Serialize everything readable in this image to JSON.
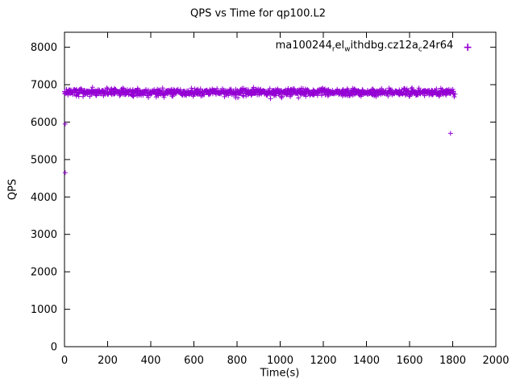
{
  "chart_data": {
    "type": "scatter",
    "title": "QPS vs Time for qp100.L2",
    "xlabel": "Time(s)",
    "ylabel": "QPS",
    "xlim": [
      0,
      2000
    ],
    "ylim": [
      0,
      8400
    ],
    "xticks": [
      0,
      200,
      400,
      600,
      800,
      1000,
      1200,
      1400,
      1600,
      1800,
      2000
    ],
    "yticks": [
      0,
      1000,
      2000,
      3000,
      4000,
      5000,
      6000,
      7000,
      8000
    ],
    "grid": false,
    "marker": "plus",
    "marker_color": "#9400D3",
    "legend_position": "top-right",
    "legend": {
      "name": "ma100244_rel_withdbg.cz12a_c24r64",
      "display_parts": [
        {
          "text": "ma100244",
          "sub": false
        },
        {
          "text": "r",
          "sub": true
        },
        {
          "text": "el",
          "sub": false
        },
        {
          "text": "w",
          "sub": true
        },
        {
          "text": "ithdbg.cz12a",
          "sub": false
        },
        {
          "text": "c",
          "sub": true
        },
        {
          "text": "24r64",
          "sub": false
        }
      ]
    },
    "series": [
      {
        "name": "ma100244_rel_withdbg.cz12a_c24r64",
        "description": "steady band of QPS samples",
        "band": {
          "x_start": 0,
          "x_end": 1810,
          "y_mean": 6800,
          "y_min": 6580,
          "y_max": 6960,
          "count": 1200,
          "seed": 42
        },
        "outliers": [
          [
            3,
            4650
          ],
          [
            3,
            5950
          ],
          [
            1790,
            5700
          ]
        ]
      }
    ]
  }
}
